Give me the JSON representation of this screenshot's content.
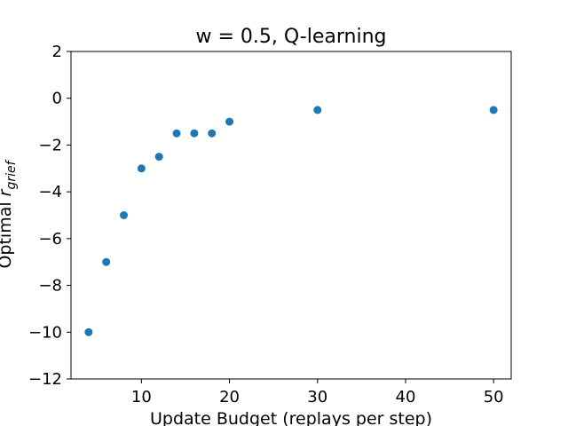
{
  "chart_data": {
    "type": "scatter",
    "title": "w = 0.5, Q-learning",
    "xlabel": "Update Budget (replays per step)",
    "ylabel": {
      "main": "Optimal ",
      "symbol": "r",
      "subscript": "grief"
    },
    "xlim": [
      2,
      52
    ],
    "ylim": [
      -12,
      2
    ],
    "xticks": [
      10,
      20,
      30,
      40,
      50
    ],
    "yticks": [
      2,
      0,
      -2,
      -4,
      -6,
      -8,
      -10,
      -12
    ],
    "xtick_labels": [
      "10",
      "20",
      "30",
      "40",
      "50"
    ],
    "ytick_labels": [
      "2",
      "0",
      "−2",
      "−4",
      "−6",
      "−8",
      "−10",
      "−12"
    ],
    "grid": false,
    "marker_color": "#1f77b4",
    "series": [
      {
        "points": [
          {
            "x": 4,
            "y": -10
          },
          {
            "x": 6,
            "y": -7
          },
          {
            "x": 8,
            "y": -5
          },
          {
            "x": 10,
            "y": -3
          },
          {
            "x": 12,
            "y": -2.5
          },
          {
            "x": 14,
            "y": -1.5
          },
          {
            "x": 16,
            "y": -1.5
          },
          {
            "x": 18,
            "y": -1.5
          },
          {
            "x": 20,
            "y": -1
          },
          {
            "x": 30,
            "y": -0.5
          },
          {
            "x": 50,
            "y": -0.5
          }
        ]
      }
    ]
  }
}
